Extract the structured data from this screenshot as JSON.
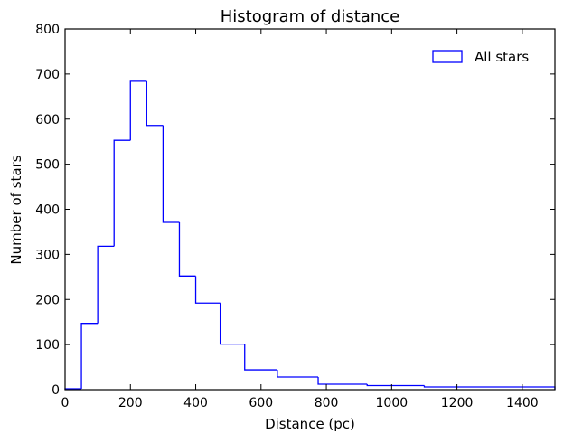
{
  "chart_data": {
    "type": "bar",
    "style": "step-histogram",
    "title": "Histogram of distance",
    "xlabel": "Distance (pc)",
    "ylabel": "Number of stars",
    "xlim": [
      0,
      1500
    ],
    "ylim": [
      0,
      800
    ],
    "xticks": [
      0,
      200,
      400,
      600,
      800,
      1000,
      1200,
      1400
    ],
    "yticks": [
      0,
      100,
      200,
      300,
      400,
      500,
      600,
      700,
      800
    ],
    "bin_edges": [
      0,
      50,
      100,
      150,
      200,
      250,
      300,
      350,
      400,
      475,
      550,
      650,
      775,
      925,
      1100,
      1500
    ],
    "series": [
      {
        "name": "All stars",
        "color": "#0000ff",
        "values": [
          2,
          147,
          318,
          553,
          684,
          586,
          371,
          252,
          192,
          101,
          44,
          28,
          12,
          9,
          6
        ]
      }
    ],
    "legend": {
      "position": "top-right"
    },
    "grid": false
  }
}
